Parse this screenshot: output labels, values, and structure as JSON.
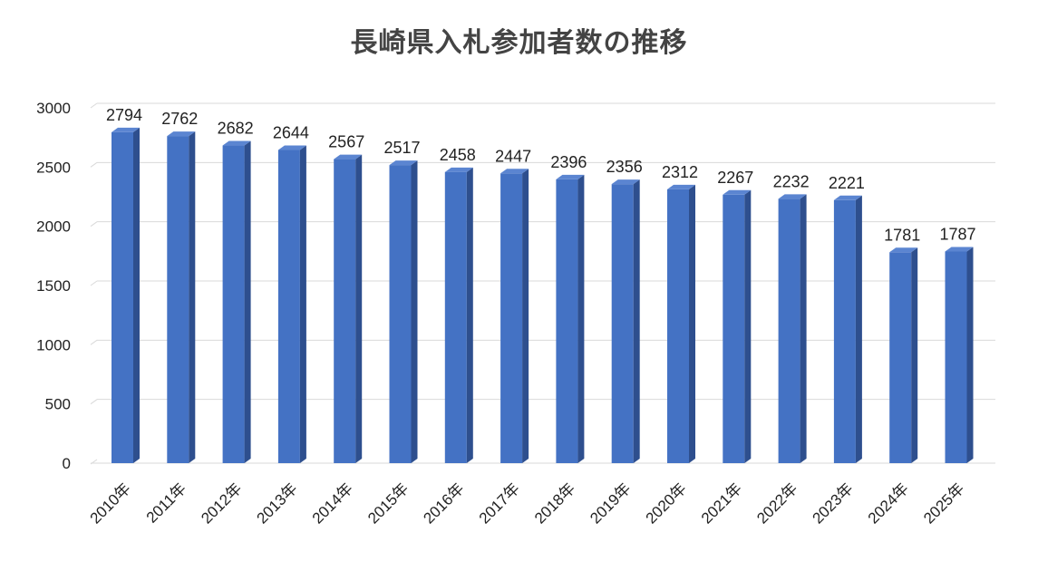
{
  "chart_data": {
    "type": "bar",
    "title": "長崎県入札参加者数の推移",
    "categories": [
      "2010年",
      "2011年",
      "2012年",
      "2013年",
      "2014年",
      "2015年",
      "2016年",
      "2017年",
      "2018年",
      "2019年",
      "2020年",
      "2021年",
      "2022年",
      "2023年",
      "2024年",
      "2025年"
    ],
    "values": [
      2794,
      2762,
      2682,
      2644,
      2567,
      2517,
      2458,
      2447,
      2396,
      2356,
      2312,
      2267,
      2232,
      2221,
      1781,
      1787
    ],
    "ylim": [
      0,
      3000
    ],
    "yticks": [
      0,
      500,
      1000,
      1500,
      2000,
      2500,
      3000
    ],
    "xlabel": "",
    "ylabel": "",
    "grid": true,
    "legend": "none",
    "bar_style": "3d",
    "colors": {
      "bar_front": "#4472C4",
      "bar_side": "#2E4F8E",
      "bar_top": "#5B85D1",
      "gridline": "#D9D9D9",
      "text": "#222222"
    }
  }
}
